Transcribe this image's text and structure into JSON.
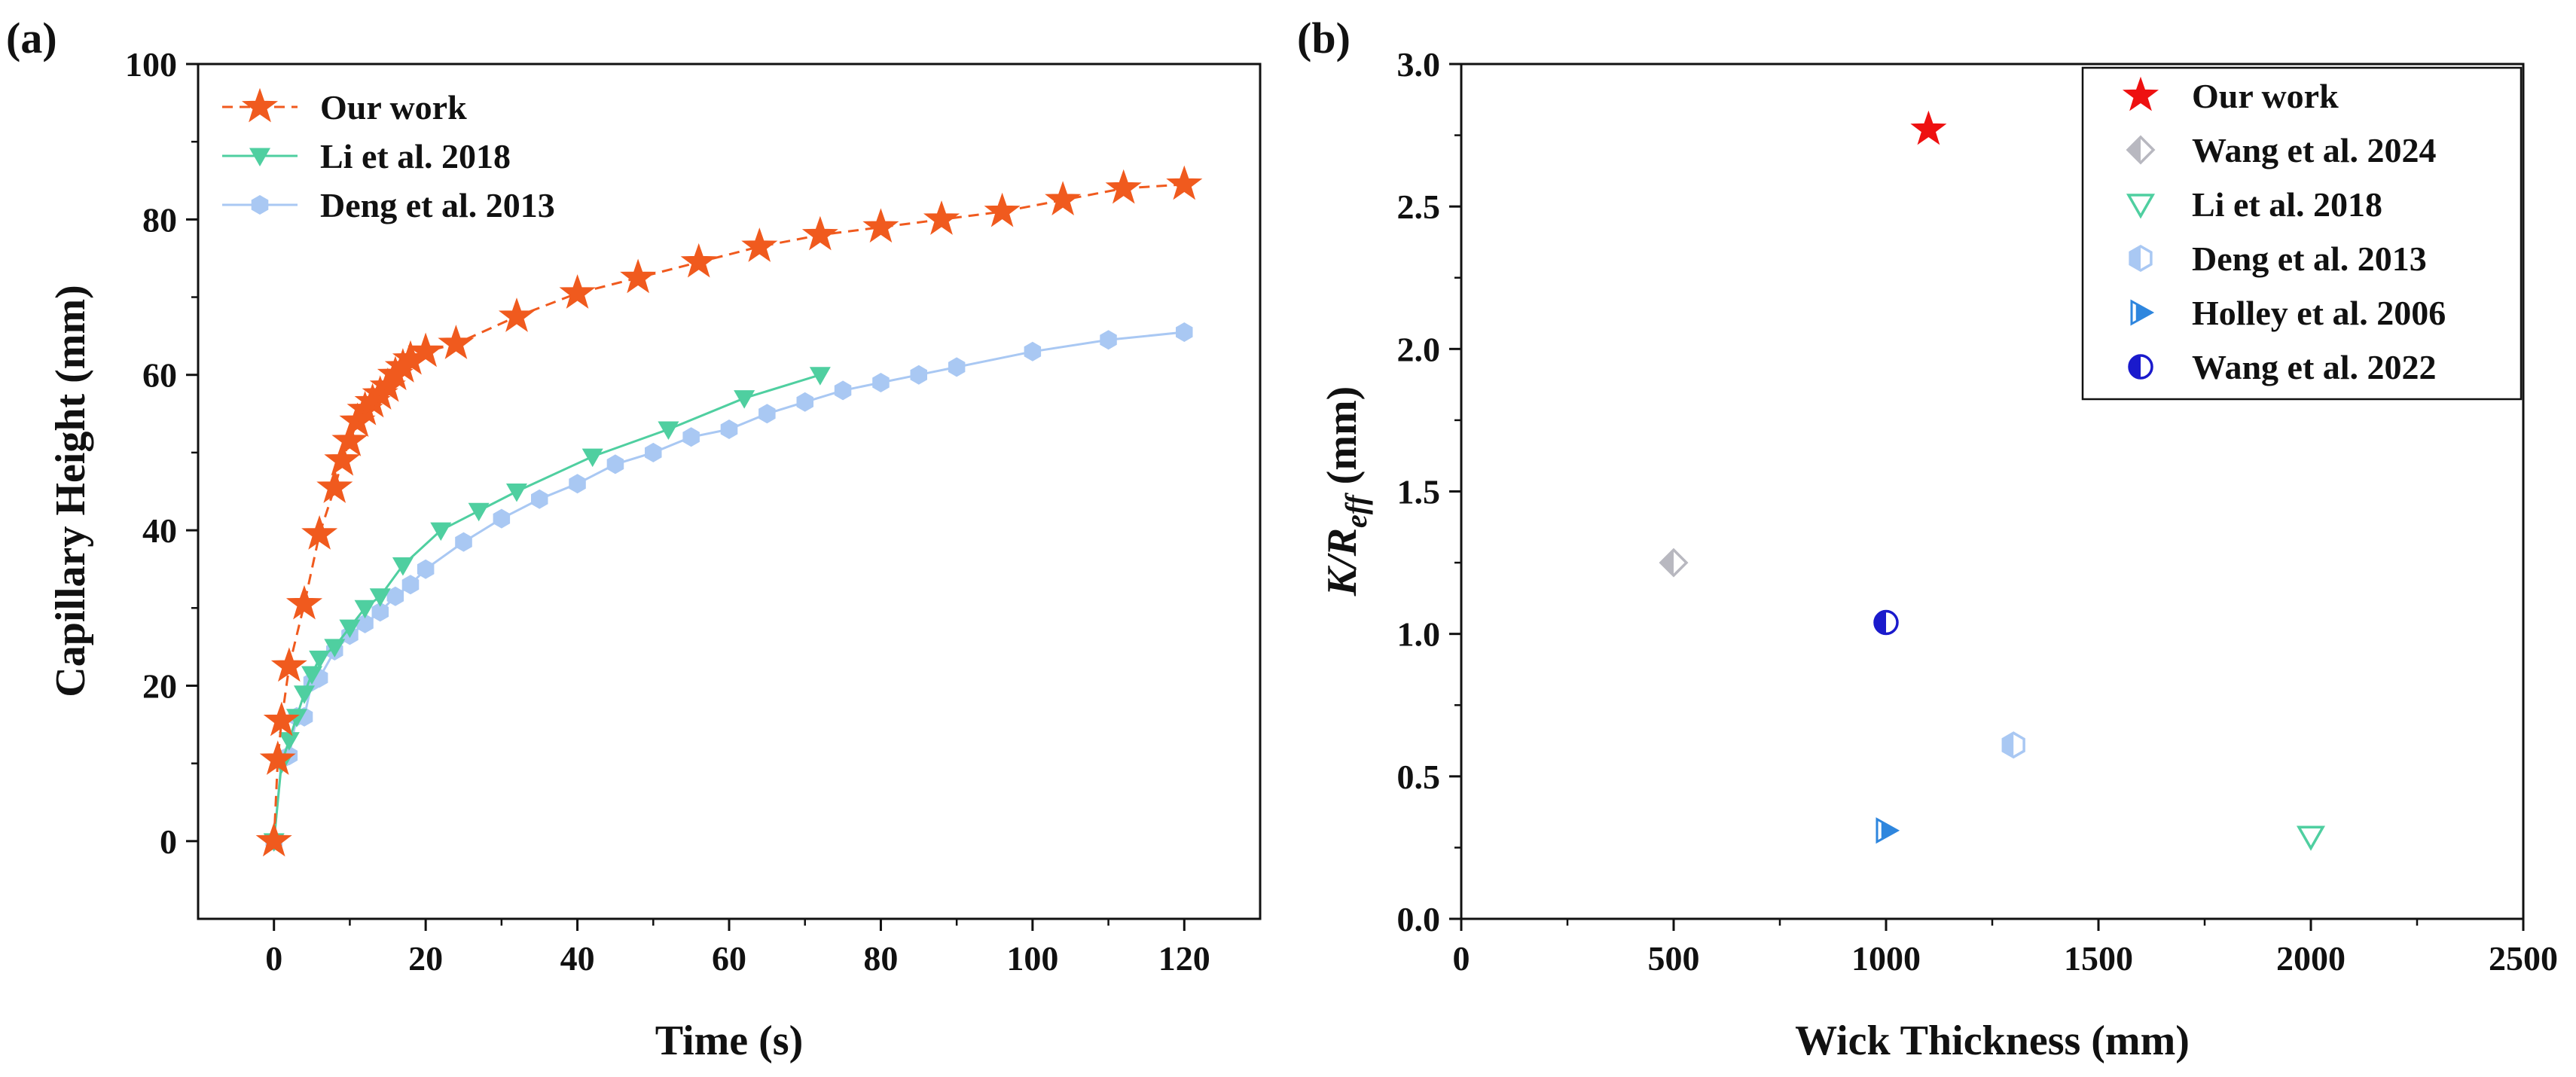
{
  "chart_data": [
    {
      "type": "line",
      "panel_label": "(a)",
      "xlabel": "Time (s)",
      "ylabel": "Capillary Height (mm)",
      "xlim": [
        -10,
        130
      ],
      "ylim": [
        -10,
        100
      ],
      "xticks": [
        0,
        20,
        40,
        60,
        80,
        100,
        120
      ],
      "yticks": [
        0,
        20,
        40,
        60,
        80,
        100
      ],
      "legend_position": "top-left",
      "series": [
        {
          "name": "Our work",
          "color": "#f05a1e",
          "marker": "star",
          "line": "dashed",
          "x": [
            0,
            0.5,
            1,
            2,
            4,
            6,
            8,
            9,
            10,
            11,
            12,
            13,
            14,
            15,
            16,
            17,
            18,
            20,
            24,
            32,
            40,
            48,
            56,
            64,
            72,
            80,
            88,
            96,
            104,
            112,
            120
          ],
          "y": [
            0,
            10.5,
            15.5,
            22.5,
            30.5,
            39.5,
            45.5,
            49,
            51.5,
            54,
            55.5,
            56.5,
            57.5,
            58.5,
            60,
            61,
            62,
            63,
            64,
            67.5,
            70.5,
            72.5,
            74.5,
            76.5,
            78,
            79,
            80,
            81,
            82.5,
            84,
            84.5
          ]
        },
        {
          "name": "Li et al. 2018",
          "color": "#4fcfa0",
          "marker": "triangle-down",
          "line": "solid",
          "x": [
            0,
            1,
            2,
            3,
            4,
            5,
            6,
            8,
            10,
            12,
            14,
            17,
            22,
            27,
            32,
            42,
            52,
            62,
            72
          ],
          "y": [
            0,
            10,
            13,
            16,
            19,
            21.5,
            23.5,
            25,
            27.5,
            30,
            31.5,
            35.5,
            40,
            42.5,
            45,
            49.5,
            53,
            57,
            60
          ]
        },
        {
          "name": "Deng et al. 2013",
          "color": "#a9c8f3",
          "marker": "hexagon",
          "line": "solid",
          "x": [
            0,
            1,
            2,
            3,
            4,
            5,
            6,
            8,
            10,
            12,
            14,
            16,
            18,
            20,
            25,
            30,
            35,
            40,
            45,
            50,
            55,
            60,
            65,
            70,
            75,
            80,
            85,
            90,
            100,
            110,
            120
          ],
          "y": [
            0,
            10.5,
            11,
            16,
            16,
            20.5,
            21,
            24.5,
            26.5,
            28,
            29.5,
            31.5,
            33,
            35,
            38.5,
            41.5,
            44,
            46,
            48.5,
            50,
            52,
            53,
            55,
            56.5,
            58,
            59,
            60,
            61,
            63,
            64.5,
            65.5
          ]
        }
      ]
    },
    {
      "type": "scatter",
      "panel_label": "(b)",
      "xlabel": "Wick Thickness (mm)",
      "ylabel_main": "K/R",
      "ylabel_sub": "eff",
      "ylabel_unit": " (mm)",
      "xlim": [
        0,
        2500
      ],
      "ylim": [
        0,
        3.0
      ],
      "xticks": [
        0,
        500,
        1000,
        1500,
        2000,
        2500
      ],
      "yticks": [
        0.0,
        0.5,
        1.0,
        1.5,
        2.0,
        2.5,
        3.0
      ],
      "ytick_labels": [
        "0.0",
        "0.5",
        "1.0",
        "1.5",
        "2.0",
        "2.5",
        "3.0"
      ],
      "legend_position": "top-right",
      "series": [
        {
          "name": "Our work",
          "color": "#ee1111",
          "marker": "star",
          "x": 1100,
          "y": 2.77
        },
        {
          "name": "Wang et al. 2024",
          "color": "#b8b8c0",
          "marker": "diamond-half",
          "x": 500,
          "y": 1.25
        },
        {
          "name": "Li et al. 2018",
          "color": "#4fcfa0",
          "marker": "triangle-down-open",
          "x": 2000,
          "y": 0.29
        },
        {
          "name": "Deng et al. 2013",
          "color": "#a9c8f3",
          "marker": "hexagon-half",
          "x": 1300,
          "y": 0.61
        },
        {
          "name": "Holley et al. 2006",
          "color": "#2e86de",
          "marker": "triangle-right-half",
          "x": 1000,
          "y": 0.31
        },
        {
          "name": "Wang et al. 2022",
          "color": "#1a1acc",
          "marker": "circle-half",
          "x": 1000,
          "y": 1.04
        }
      ]
    }
  ]
}
